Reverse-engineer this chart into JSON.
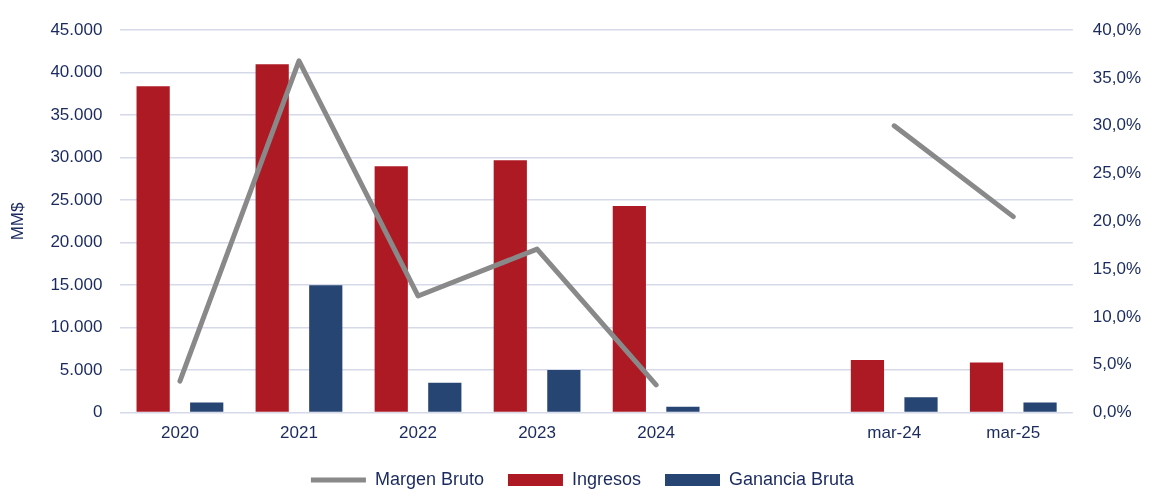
{
  "chart_data": {
    "type": "bar",
    "ylabel": "MM$",
    "categories": [
      "2020",
      "2021",
      "2022",
      "2023",
      "2024",
      null,
      "mar-24",
      "mar-25"
    ],
    "series": [
      {
        "name": "Ingresos",
        "color": "#ae1a24",
        "values": [
          38400,
          41000,
          29000,
          29700,
          24300,
          null,
          6200,
          5900
        ]
      },
      {
        "name": "Ganancia Bruta",
        "color": "#264573",
        "values": [
          1200,
          15000,
          3500,
          5000,
          700,
          null,
          1800,
          1200
        ]
      },
      {
        "name": "Margen Bruto",
        "type": "line",
        "axis": "y2",
        "color": "#898989",
        "values": [
          3.3,
          36.8,
          12.2,
          17.1,
          2.9,
          null,
          30.0,
          20.5
        ]
      }
    ],
    "ylim": [
      0,
      45000
    ],
    "yticks": [
      {
        "value": 0,
        "label": "0"
      },
      {
        "value": 5000,
        "label": "5.000"
      },
      {
        "value": 10000,
        "label": "10.000"
      },
      {
        "value": 15000,
        "label": "15.000"
      },
      {
        "value": 20000,
        "label": "20.000"
      },
      {
        "value": 25000,
        "label": "25.000"
      },
      {
        "value": 30000,
        "label": "30.000"
      },
      {
        "value": 35000,
        "label": "35.000"
      },
      {
        "value": 40000,
        "label": "40.000"
      },
      {
        "value": 45000,
        "label": "45.000"
      }
    ],
    "y2lim": [
      0,
      40
    ],
    "y2ticks": [
      {
        "value": 0,
        "label": "0,0%"
      },
      {
        "value": 5,
        "label": "5,0%"
      },
      {
        "value": 10,
        "label": "10,0%"
      },
      {
        "value": 15,
        "label": "15,0%"
      },
      {
        "value": 20,
        "label": "20,0%"
      },
      {
        "value": 25,
        "label": "25,0%"
      },
      {
        "value": 30,
        "label": "30,0%"
      },
      {
        "value": 35,
        "label": "35,0%"
      },
      {
        "value": 40,
        "label": "40,0%"
      }
    ],
    "grid": "y",
    "legend": "bottom"
  }
}
